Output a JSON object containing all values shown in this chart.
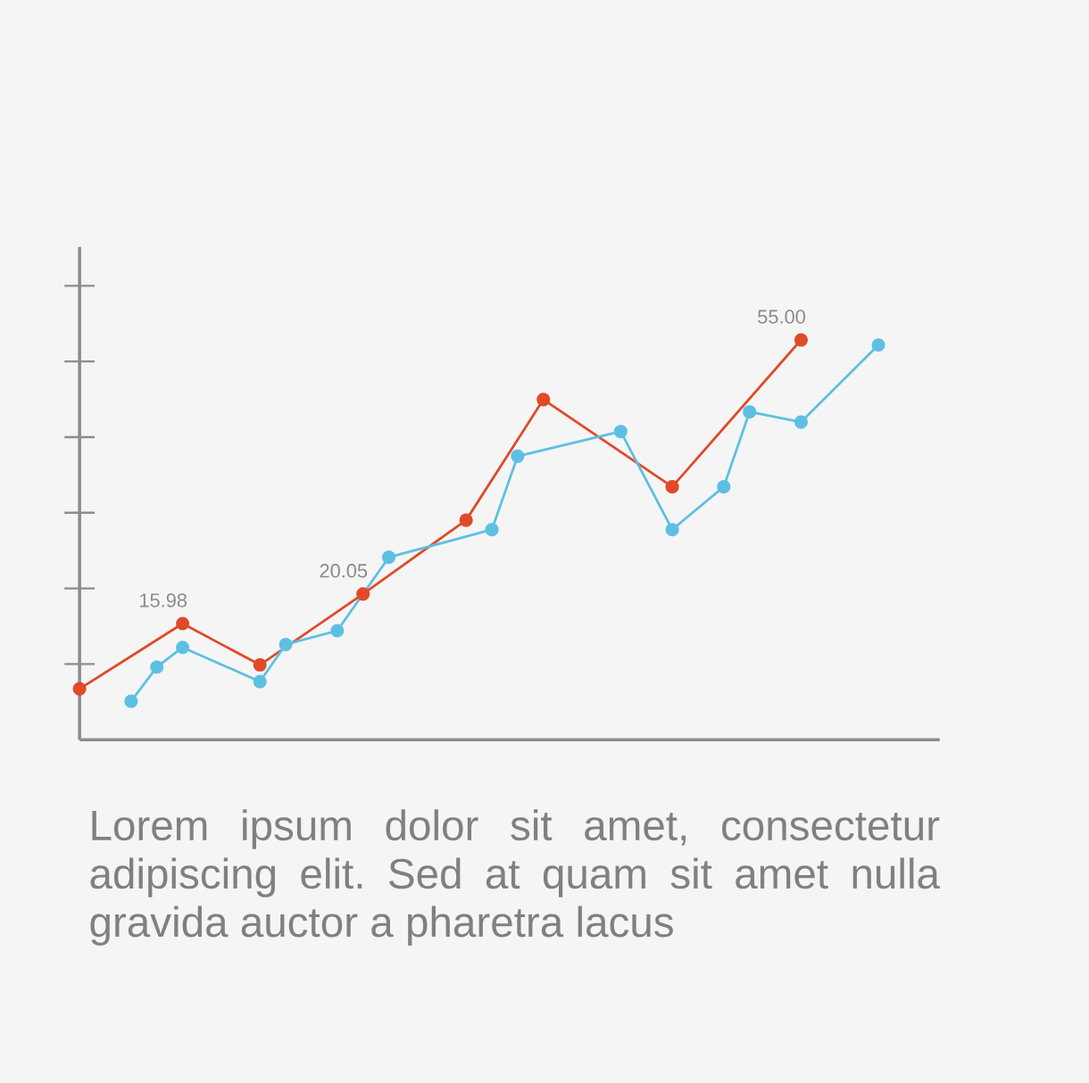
{
  "chart_data": {
    "type": "line",
    "categories": [
      null,
      null,
      null,
      null,
      null,
      null,
      null,
      null,
      null,
      null,
      null,
      null,
      null,
      null,
      null,
      null,
      null,
      null,
      null,
      null,
      null,
      null,
      null,
      null,
      null,
      null,
      null,
      null,
      null,
      null,
      null,
      null
    ],
    "ylim": [
      0,
      67.8
    ],
    "marker": "circle",
    "line_style": "solid",
    "series": [
      {
        "color": "#e04a28",
        "values": [
          7.0,
          null,
          null,
          null,
          15.98,
          null,
          null,
          10.3,
          null,
          null,
          null,
          20.05,
          null,
          null,
          null,
          30.2,
          null,
          null,
          46.8,
          null,
          null,
          null,
          null,
          34.8,
          null,
          null,
          null,
          null,
          55.0,
          null,
          null,
          null
        ],
        "value_labels": [
          null,
          null,
          null,
          null,
          "15.98",
          null,
          null,
          null,
          null,
          null,
          null,
          "20.05",
          null,
          null,
          null,
          null,
          null,
          null,
          null,
          null,
          null,
          null,
          null,
          null,
          null,
          null,
          null,
          null,
          "55.00",
          null,
          null,
          null
        ]
      },
      {
        "color": "#5dc0e3",
        "values": [
          null,
          null,
          5.3,
          10.0,
          12.7,
          null,
          null,
          8.0,
          13.1,
          null,
          15.0,
          null,
          25.1,
          null,
          null,
          null,
          28.9,
          39.0,
          null,
          null,
          null,
          42.4,
          null,
          28.9,
          null,
          34.8,
          45.1,
          null,
          43.7,
          null,
          null,
          54.3
        ]
      }
    ],
    "annotations": [
      "Lorem ipsum dolor sit amet, consectetur adipiscing elit. Sed at quam sit amet nulla gravida auctor a pharetra lacus"
    ]
  }
}
